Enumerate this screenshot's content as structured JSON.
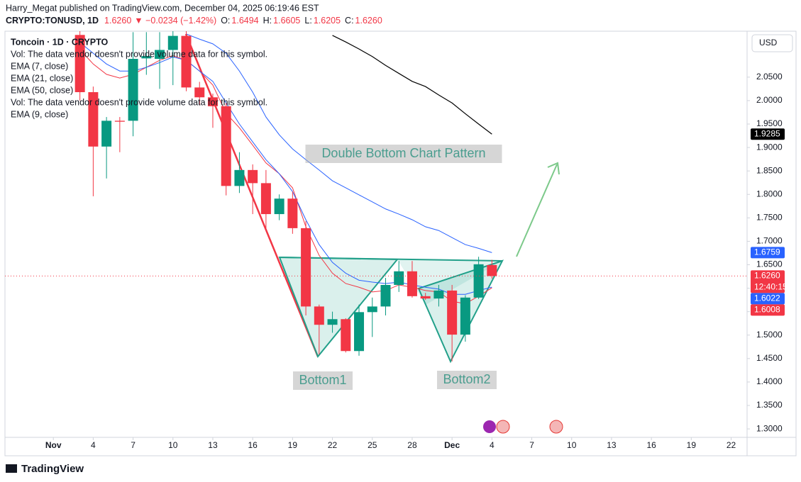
{
  "header": {
    "publisher": "Harry_Megat published on TradingView.com, December 04, 2025 06:19:46 EST",
    "symbol": "CRYPTO:TONUSD, 1D",
    "last": "1.6260",
    "change": "▼ −0.0234 (−1.42%)",
    "ohlc": [
      {
        "key": "O:",
        "value": "1.6494"
      },
      {
        "key": "H:",
        "value": "1.6605"
      },
      {
        "key": "L:",
        "value": "1.6205"
      },
      {
        "key": "C:",
        "value": "1.6260"
      }
    ]
  },
  "currency": "USD",
  "brand": "TradingView",
  "chart_data": {
    "type": "candlestick",
    "title": "Toncoin · 1D · CRYPTO",
    "notes": [
      "Vol: The data vendor doesn't provide volume data for this symbol.",
      "Vol: The data vendor doesn't provide volume data for this symbol."
    ],
    "annotations": [
      "Double Bottom Chart Pattern",
      "Bottom1",
      "Bottom2"
    ],
    "up_color": "#089981",
    "down_color": "#f23645",
    "x": [
      2,
      3,
      4,
      5,
      6,
      7,
      8,
      9,
      10,
      11,
      12,
      13,
      14,
      15,
      16,
      17,
      18,
      19,
      20,
      21,
      22,
      23,
      24,
      25,
      26,
      27,
      28,
      29,
      30,
      31,
      32,
      33
    ],
    "open": [
      2.14,
      2.018,
      1.902,
      1.957,
      1.957,
      2.09,
      2.089,
      2.108,
      2.138,
      2.028,
      2.007,
      1.988,
      1.818,
      1.852,
      1.824,
      1.758,
      1.791,
      1.728,
      1.561,
      1.522,
      1.534,
      1.466,
      1.549,
      1.561,
      1.607,
      1.636,
      1.583,
      1.578,
      1.595,
      1.501,
      1.58,
      1.6494
    ],
    "high": [
      2.16,
      2.03,
      1.965,
      1.965,
      2.146,
      2.146,
      2.146,
      2.15,
      2.15,
      2.04,
      2.015,
      1.995,
      1.89,
      1.864,
      1.852,
      1.8,
      1.806,
      1.743,
      1.565,
      1.55,
      1.536,
      1.565,
      1.58,
      1.622,
      1.658,
      1.658,
      1.59,
      1.607,
      1.607,
      1.585,
      1.667,
      1.6605
    ],
    "low": [
      2.0,
      1.796,
      1.834,
      1.89,
      1.924,
      2.055,
      2.025,
      2.033,
      2.02,
      1.99,
      1.942,
      1.798,
      1.803,
      1.758,
      1.728,
      1.745,
      1.716,
      1.542,
      1.459,
      1.505,
      1.463,
      1.456,
      1.496,
      1.542,
      1.592,
      1.58,
      1.575,
      1.561,
      1.444,
      1.486,
      1.577,
      1.6205
    ],
    "close": [
      2.018,
      1.902,
      1.957,
      1.955,
      2.089,
      2.095,
      2.108,
      2.138,
      2.028,
      2.007,
      1.988,
      1.818,
      1.852,
      1.824,
      1.758,
      1.791,
      1.728,
      1.561,
      1.522,
      1.534,
      1.466,
      1.549,
      1.561,
      1.607,
      1.636,
      1.583,
      1.578,
      1.595,
      1.501,
      1.58,
      1.651,
      1.626
    ],
    "series": [
      {
        "name": "EMA (7, close)",
        "color": "#f23645",
        "values": [
          2.109,
          2.078,
          2.056,
          2.048,
          2.056,
          2.071,
          2.086,
          2.096,
          2.086,
          2.063,
          2.033,
          1.973,
          1.942,
          1.905,
          1.867,
          1.844,
          1.814,
          1.731,
          1.67,
          1.632,
          1.61,
          1.602,
          1.592,
          1.595,
          1.607,
          1.602,
          1.595,
          1.592,
          1.572,
          1.567,
          1.583,
          1.6008
        ]
      },
      {
        "name": "EMA (21, close)",
        "color": "#2962ff",
        "values": [
          null,
          null,
          null,
          null,
          null,
          null,
          null,
          null,
          2.142,
          2.131,
          2.121,
          2.101,
          2.063,
          2.018,
          1.965,
          1.927,
          1.897,
          1.874,
          1.852,
          1.829,
          1.814,
          1.799,
          1.784,
          1.769,
          1.758,
          1.746,
          1.731,
          1.723,
          1.708,
          1.693,
          1.685,
          1.6759
        ]
      },
      {
        "name": "EMA (50, close)",
        "color": "#000000",
        "values": [
          null,
          null,
          null,
          null,
          null,
          null,
          null,
          null,
          null,
          null,
          null,
          null,
          null,
          null,
          null,
          null,
          null,
          null,
          null,
          2.139,
          2.125,
          2.11,
          2.094,
          2.075,
          2.058,
          2.041,
          2.03,
          2.012,
          1.995,
          1.972,
          1.95,
          1.9285
        ]
      },
      {
        "name": "EMA (9, close)",
        "color": "#2962ff",
        "values": [
          2.124,
          2.101,
          2.078,
          2.063,
          2.063,
          2.071,
          2.081,
          2.093,
          2.086,
          2.063,
          2.041,
          1.995,
          1.95,
          1.912,
          1.874,
          1.844,
          1.806,
          1.746,
          1.693,
          1.655,
          1.632,
          1.617,
          1.613,
          1.61,
          1.613,
          1.607,
          1.602,
          1.598,
          1.587,
          1.587,
          1.595,
          1.6022
        ]
      }
    ],
    "price_tags": [
      {
        "value": 1.9285,
        "label": "1.9285",
        "color": "#000000"
      },
      {
        "value": 1.6759,
        "label": "1.6759",
        "color": "#2962ff"
      },
      {
        "value": 1.626,
        "label": "1.6260",
        "color": "#f23645",
        "countdown": "12:40:15"
      },
      {
        "value": 1.6022,
        "label": "1.6022",
        "color": "#2962ff"
      },
      {
        "value": 1.6008,
        "label": "1.6008",
        "color": "#f23645"
      }
    ],
    "xlim": [
      -3.64,
      52.2
    ],
    "xticks": [
      {
        "value": 0,
        "label": "Nov"
      },
      {
        "value": 3,
        "label": "4"
      },
      {
        "value": 6,
        "label": "7"
      },
      {
        "value": 9,
        "label": "10"
      },
      {
        "value": 12,
        "label": "13"
      },
      {
        "value": 15,
        "label": "16"
      },
      {
        "value": 18,
        "label": "19"
      },
      {
        "value": 21,
        "label": "22"
      },
      {
        "value": 24,
        "label": "25"
      },
      {
        "value": 27,
        "label": "28"
      },
      {
        "value": 30,
        "label": "Dec"
      },
      {
        "value": 33,
        "label": "4"
      },
      {
        "value": 36,
        "label": "7"
      },
      {
        "value": 39,
        "label": "10"
      },
      {
        "value": 42,
        "label": "13"
      },
      {
        "value": 45,
        "label": "16"
      },
      {
        "value": 48,
        "label": "19"
      },
      {
        "value": 51,
        "label": "22"
      }
    ],
    "ylim": [
      1.282,
      2.148
    ],
    "yticks": [
      {
        "value": 1.3,
        "label": "1.3000"
      },
      {
        "value": 1.35,
        "label": "1.3500"
      },
      {
        "value": 1.4,
        "label": "1.4000"
      },
      {
        "value": 1.45,
        "label": "1.4500"
      },
      {
        "value": 1.5,
        "label": "1.5000"
      },
      {
        "value": 1.55,
        "label": "1.5500"
      },
      {
        "value": 1.6,
        "label": "1.6000"
      },
      {
        "value": 1.65,
        "label": "1.6500"
      },
      {
        "value": 1.7,
        "label": "1.7000"
      },
      {
        "value": 1.75,
        "label": "1.7500"
      },
      {
        "value": 1.8,
        "label": "1.8000"
      },
      {
        "value": 1.85,
        "label": "1.8500"
      },
      {
        "value": 1.9,
        "label": "1.9000"
      },
      {
        "value": 1.95,
        "label": "1.9500"
      },
      {
        "value": 2.0,
        "label": "2.0000"
      },
      {
        "value": 2.05,
        "label": "2.0500"
      }
    ]
  }
}
